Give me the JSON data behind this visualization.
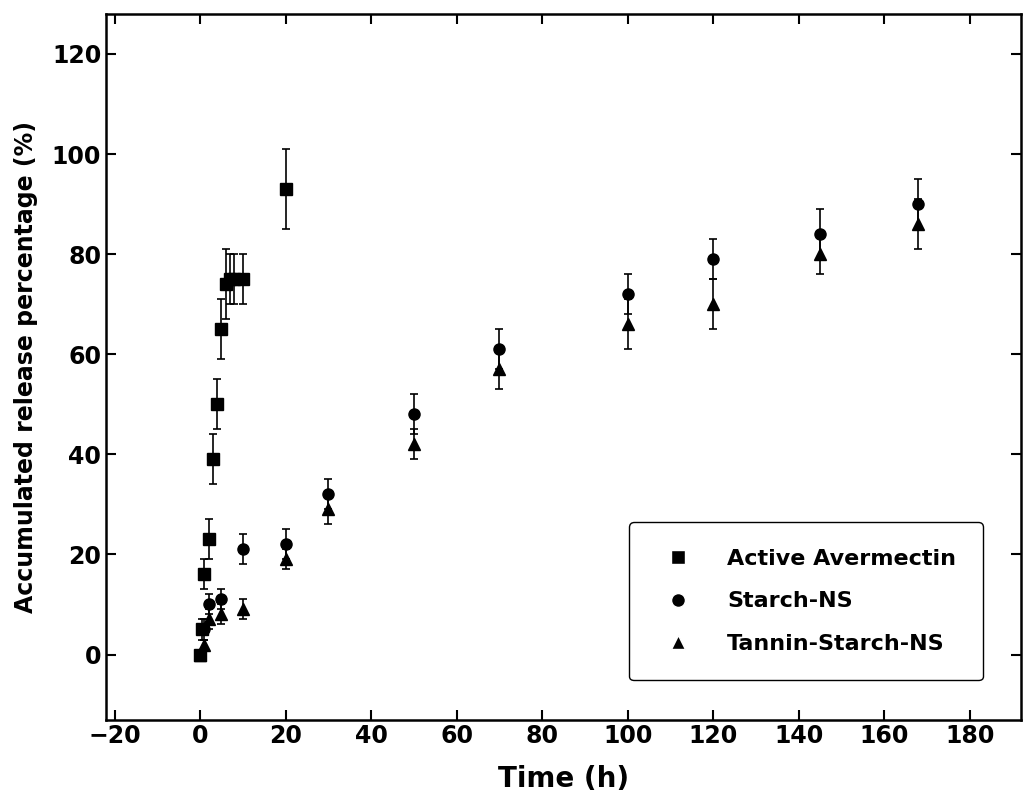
{
  "active_avermectin_x": [
    0,
    0.5,
    1,
    2,
    3,
    4,
    5,
    6,
    7,
    8,
    10,
    20
  ],
  "active_avermectin_y": [
    0,
    5,
    16,
    23,
    39,
    50,
    65,
    74,
    75,
    75,
    75,
    93
  ],
  "active_avermectin_yerr": [
    0.5,
    2,
    3,
    4,
    5,
    5,
    6,
    7,
    5,
    5,
    5,
    8
  ],
  "starch_ns_x": [
    0,
    1,
    2,
    5,
    10,
    20,
    30,
    50,
    70,
    100,
    120,
    145,
    168
  ],
  "starch_ns_y": [
    0,
    5,
    10,
    11,
    21,
    22,
    32,
    48,
    61,
    72,
    79,
    84,
    90
  ],
  "starch_ns_yerr": [
    0.5,
    2,
    2,
    2,
    3,
    3,
    3,
    4,
    4,
    4,
    4,
    5,
    5
  ],
  "tannin_starch_ns_x": [
    0,
    1,
    2,
    5,
    10,
    20,
    30,
    50,
    70,
    100,
    120,
    145,
    168
  ],
  "tannin_starch_ns_y": [
    0,
    2,
    7,
    8,
    9,
    19,
    29,
    42,
    57,
    66,
    70,
    80,
    86
  ],
  "tannin_starch_ns_yerr": [
    0.5,
    1,
    2,
    2,
    2,
    2,
    3,
    3,
    4,
    5,
    5,
    4,
    5
  ],
  "xlabel": "Time (h)",
  "ylabel": "Accumulated release percentage (%)",
  "xlim": [
    -22,
    192
  ],
  "ylim": [
    -13,
    128
  ],
  "xticks": [
    -20,
    0,
    20,
    40,
    60,
    80,
    100,
    120,
    140,
    160,
    180
  ],
  "yticks": [
    0,
    20,
    40,
    60,
    80,
    100,
    120
  ],
  "legend_labels": [
    "Active Avermectin",
    "Starch-NS",
    "Tannin-Starch-NS"
  ],
  "background_color": "#ffffff"
}
